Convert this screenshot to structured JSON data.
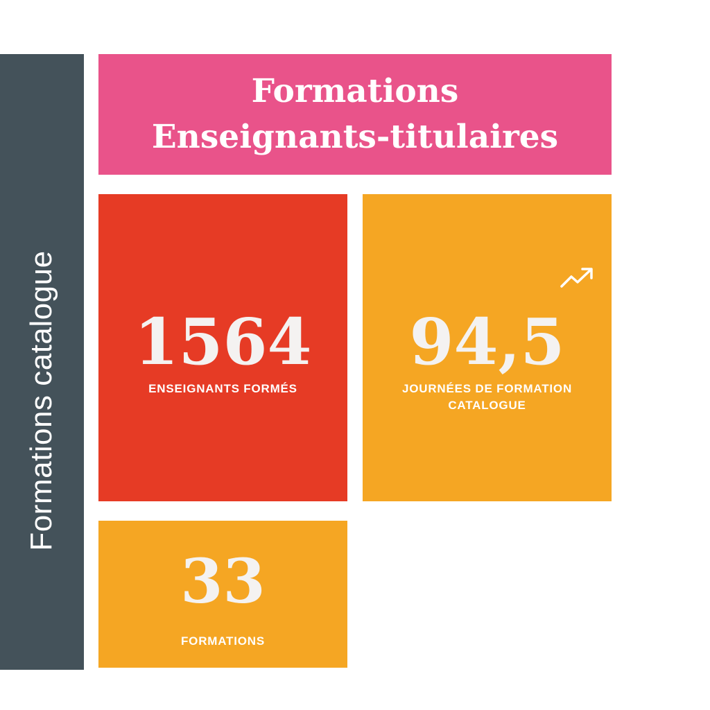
{
  "sidebar": {
    "label": "Formations catalogue"
  },
  "header": {
    "title_line1": "Formations",
    "title_line2": "Enseignants-titulaires"
  },
  "stats": {
    "teachers": {
      "value": "1564",
      "label": "ENSEIGNANTS FORMÉS"
    },
    "days": {
      "value": "94,5",
      "label_line1": "JOURNÉES DE FORMATION",
      "label_line2": "CATALOGUE",
      "icon": "trending-up-icon"
    },
    "formations": {
      "value": "33",
      "label": "FORMATIONS"
    }
  },
  "colors": {
    "sidebar": "#44525a",
    "title_background": "#e9538a",
    "teachers_background": "#e63b25",
    "days_background": "#f5a623",
    "formations_background": "#f5a623",
    "text": "#ffffff"
  }
}
